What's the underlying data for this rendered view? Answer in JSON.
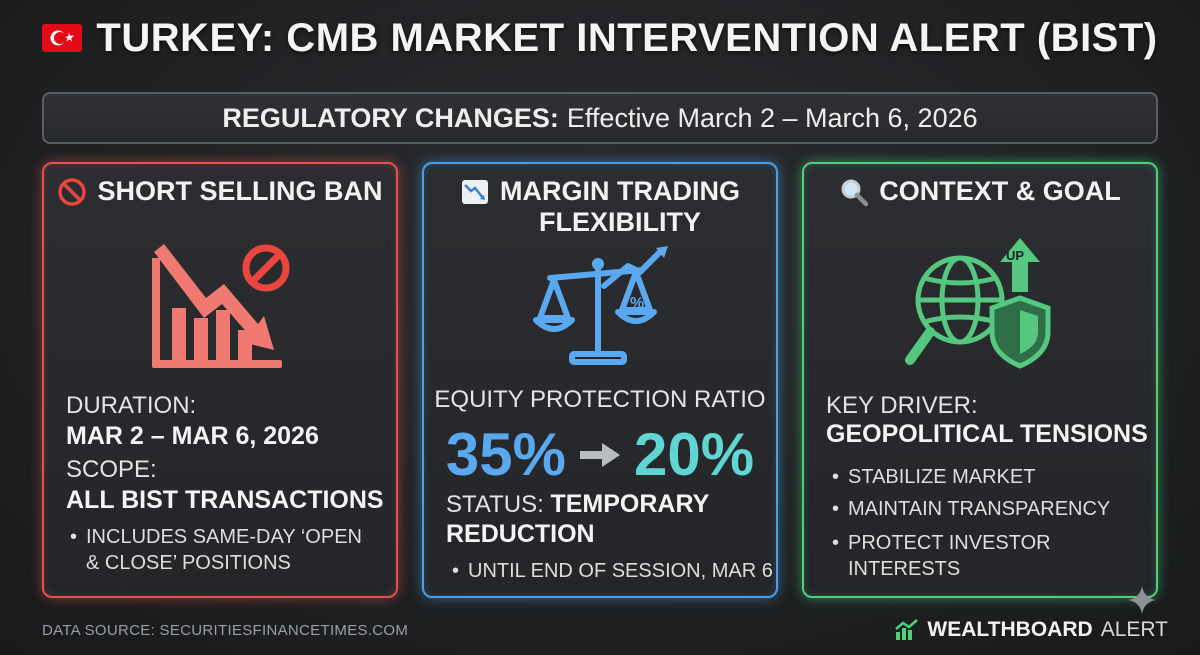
{
  "header": {
    "title": "TURKEY: CMB MARKET INTERVENTION ALERT (BIST)",
    "flag_icon": "turkey-flag-icon",
    "flag_color": "#e30a17"
  },
  "banner": {
    "label": "REGULATORY CHANGES:",
    "text": "Effective March 2 – March 6, 2026"
  },
  "cards": [
    {
      "accent": "#e0524f",
      "icon": "no-entry-icon",
      "heading": "SHORT SELLING BAN",
      "illustration": "falling-chart-ban-icon",
      "duration_label": "DURATION:",
      "duration_value": "MAR 2 – MAR 6, 2026",
      "scope_label": "SCOPE:",
      "scope_value": "ALL BIST TRANSACTIONS",
      "bullets": [
        "INCLUDES SAME-DAY ‘OPEN",
        "& CLOSE’ POSITIONS"
      ]
    },
    {
      "accent": "#4a9fe8",
      "icon": "chart-decreasing-icon",
      "heading_line1": "MARGIN TRADING",
      "heading_line2": "FLEXIBILITY",
      "illustration": "balance-scale-icon",
      "ratio_label": "EQUITY PROTECTION RATIO",
      "ratio_from": "35%",
      "ratio_to": "20%",
      "status_label": "STATUS:",
      "status_value_line1": "TEMPORARY",
      "status_value_line2": "REDUCTION",
      "bullets": [
        "UNTIL END OF SESSION, MAR 6"
      ]
    },
    {
      "accent": "#4fd07a",
      "icon": "magnifier-icon",
      "heading": "CONTEXT & GOAL",
      "illustration": "globe-shield-icon",
      "illustration_text": "UP",
      "driver_label": "KEY DRIVER:",
      "driver_value": "GEOPOLITICAL TENSIONS",
      "bullets": [
        "STABILIZE MARKET",
        "MAINTAIN TRANSPARENCY",
        "PROTECT INVESTOR",
        "INTERESTS"
      ]
    }
  ],
  "footer": {
    "source": "DATA SOURCE: SECURITIESFINANCETIMES.COM",
    "brand_bold": "WEALTHBOARD",
    "brand_light": "ALERT"
  }
}
